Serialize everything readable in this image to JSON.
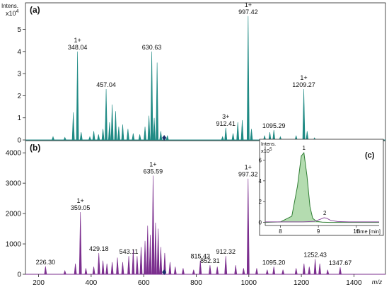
{
  "chart_data": [
    {
      "type": "bar",
      "panel_label": "(a)",
      "y_title": "Intens.",
      "y_exponent_label": "x10",
      "y_exponent": "4",
      "ylim": [
        0,
        6.2
      ],
      "xlim": [
        150,
        1520
      ],
      "yticks": [
        0,
        1,
        2,
        3,
        4,
        5
      ],
      "color": "#1f8a84",
      "peaks": [
        {
          "x": 255,
          "y": 0.15
        },
        {
          "x": 300,
          "y": 0.12
        },
        {
          "x": 332,
          "y": 1.25
        },
        {
          "x": 348.04,
          "y": 4.0,
          "label": "348.04",
          "charge": "1+"
        },
        {
          "x": 362,
          "y": 0.35
        },
        {
          "x": 395,
          "y": 0.15
        },
        {
          "x": 410,
          "y": 0.4
        },
        {
          "x": 428,
          "y": 0.25
        },
        {
          "x": 445,
          "y": 0.5
        },
        {
          "x": 457.04,
          "y": 2.3,
          "label": "457.04"
        },
        {
          "x": 470,
          "y": 0.8
        },
        {
          "x": 480,
          "y": 1.6
        },
        {
          "x": 493,
          "y": 1.3
        },
        {
          "x": 505,
          "y": 0.6
        },
        {
          "x": 520,
          "y": 0.7
        },
        {
          "x": 540,
          "y": 0.5
        },
        {
          "x": 560,
          "y": 0.3
        },
        {
          "x": 585,
          "y": 0.25
        },
        {
          "x": 605,
          "y": 0.6
        },
        {
          "x": 620,
          "y": 1.1
        },
        {
          "x": 630.63,
          "y": 4.0,
          "label": "630.63"
        },
        {
          "x": 640,
          "y": 1.0
        },
        {
          "x": 651,
          "y": 3.5
        },
        {
          "x": 665,
          "y": 0.4
        },
        {
          "x": 690,
          "y": 0.2
        },
        {
          "x": 900,
          "y": 0.15
        },
        {
          "x": 912.41,
          "y": 0.55,
          "label": "912.41",
          "charge": "3+"
        },
        {
          "x": 940,
          "y": 0.3
        },
        {
          "x": 958,
          "y": 0.8
        },
        {
          "x": 975,
          "y": 0.9
        },
        {
          "x": 997.42,
          "y": 5.6,
          "label": "997.42",
          "charge": "1+"
        },
        {
          "x": 1010,
          "y": 0.5
        },
        {
          "x": 1060,
          "y": 0.2
        },
        {
          "x": 1080,
          "y": 0.35
        },
        {
          "x": 1095.29,
          "y": 0.45,
          "label": "1095.29"
        },
        {
          "x": 1120,
          "y": 0.15
        },
        {
          "x": 1180,
          "y": 0.2
        },
        {
          "x": 1209.27,
          "y": 2.3,
          "label": "1209.27",
          "charge": "1+"
        },
        {
          "x": 1222,
          "y": 0.4
        },
        {
          "x": 1250,
          "y": 0.1
        }
      ],
      "marker_x": 678
    },
    {
      "type": "bar",
      "panel_label": "(b)",
      "ylim": [
        0,
        4400
      ],
      "xlim": [
        150,
        1520
      ],
      "yticks": [
        0,
        1000,
        2000,
        3000,
        4000
      ],
      "xticks": [
        200,
        400,
        600,
        800,
        1000,
        1200,
        1400
      ],
      "xlabel": "m/z",
      "color": "#7b2e8e",
      "peaks": [
        {
          "x": 226.3,
          "y": 260,
          "label": "226.30"
        },
        {
          "x": 300,
          "y": 120
        },
        {
          "x": 340,
          "y": 350
        },
        {
          "x": 359.05,
          "y": 2050,
          "label": "359.05",
          "charge": "1+"
        },
        {
          "x": 380,
          "y": 200
        },
        {
          "x": 410,
          "y": 250
        },
        {
          "x": 429.18,
          "y": 700,
          "label": "429.18"
        },
        {
          "x": 445,
          "y": 450
        },
        {
          "x": 460,
          "y": 350
        },
        {
          "x": 480,
          "y": 400
        },
        {
          "x": 500,
          "y": 550
        },
        {
          "x": 520,
          "y": 400
        },
        {
          "x": 543.11,
          "y": 600,
          "label": "543.11"
        },
        {
          "x": 560,
          "y": 800
        },
        {
          "x": 575,
          "y": 600
        },
        {
          "x": 590,
          "y": 900
        },
        {
          "x": 605,
          "y": 1100
        },
        {
          "x": 615,
          "y": 1600
        },
        {
          "x": 625,
          "y": 1300
        },
        {
          "x": 635.59,
          "y": 3250,
          "label": "635.59",
          "charge": "1+"
        },
        {
          "x": 645,
          "y": 1700
        },
        {
          "x": 655,
          "y": 1500
        },
        {
          "x": 665,
          "y": 900
        },
        {
          "x": 680,
          "y": 700
        },
        {
          "x": 700,
          "y": 400
        },
        {
          "x": 720,
          "y": 250
        },
        {
          "x": 750,
          "y": 200
        },
        {
          "x": 790,
          "y": 150
        },
        {
          "x": 815.43,
          "y": 450,
          "label": "815.43"
        },
        {
          "x": 852.31,
          "y": 300,
          "label": "852.31"
        },
        {
          "x": 880,
          "y": 250
        },
        {
          "x": 912.32,
          "y": 600,
          "label": "912.32"
        },
        {
          "x": 950,
          "y": 300
        },
        {
          "x": 980,
          "y": 200
        },
        {
          "x": 997.32,
          "y": 3150,
          "label": "997.32",
          "charge": "1+"
        },
        {
          "x": 1030,
          "y": 200
        },
        {
          "x": 1070,
          "y": 150
        },
        {
          "x": 1095.2,
          "y": 250,
          "label": "1095.20"
        },
        {
          "x": 1130,
          "y": 150
        },
        {
          "x": 1180,
          "y": 200
        },
        {
          "x": 1210,
          "y": 350
        },
        {
          "x": 1230,
          "y": 250
        },
        {
          "x": 1252.43,
          "y": 500,
          "label": "1252.43"
        },
        {
          "x": 1270,
          "y": 350
        },
        {
          "x": 1300,
          "y": 150
        },
        {
          "x": 1347.67,
          "y": 230,
          "label": "1347.67"
        }
      ],
      "marker_x": 678
    },
    {
      "type": "area",
      "panel_label": "(c)",
      "inset": true,
      "y_title": "Intens.",
      "y_exponent_label": "x10",
      "y_exponent": "5",
      "xlabel": "Time [min]",
      "xlim": [
        7.6,
        10.6
      ],
      "ylim": [
        -0.3,
        7.6
      ],
      "xticks": [
        8,
        9,
        10
      ],
      "yticks": [
        0,
        2,
        4,
        6
      ],
      "series": [
        {
          "fill": "#b4dcb0",
          "stroke": "#2e7d32",
          "x": [
            7.6,
            8.0,
            8.3,
            8.45,
            8.55,
            8.62,
            8.7,
            8.78,
            8.85,
            8.95,
            9.1,
            9.3,
            10.6
          ],
          "y": [
            0,
            0.05,
            0.6,
            3.5,
            6.4,
            6.7,
            4.5,
            1.5,
            0.4,
            0.1,
            0.02,
            0,
            0
          ]
        },
        {
          "fill": "none",
          "stroke": "#8a4b9c",
          "x": [
            7.6,
            8.6,
            8.9,
            9.05,
            9.15,
            9.22,
            9.32,
            9.5,
            9.8,
            10.6
          ],
          "y": [
            0.05,
            0.05,
            0.1,
            0.3,
            0.45,
            0.4,
            0.2,
            0.08,
            0.05,
            0.05
          ]
        }
      ],
      "peak_labels": [
        {
          "x": 8.62,
          "y": 6.7,
          "text": "1"
        },
        {
          "x": 9.17,
          "y": 0.45,
          "text": "2"
        }
      ]
    }
  ]
}
